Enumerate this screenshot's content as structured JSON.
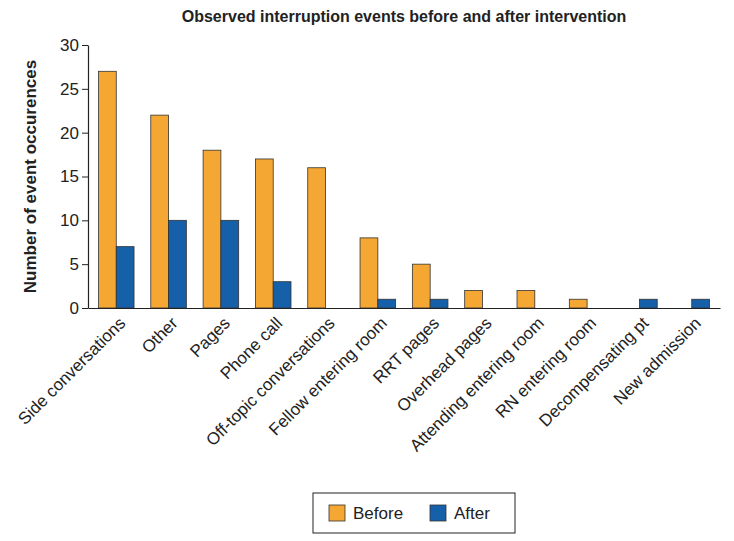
{
  "chart_data": {
    "type": "bar",
    "title": "Observed interruption events before and after intervention",
    "y_label": "Number of event occurences",
    "categories": [
      "Side conversations",
      "Other",
      "Pages",
      "Phone call",
      "Off-topic conversations",
      "Fellow entering room",
      "RRT pages",
      "Overhead pages",
      "Attending entering room",
      "RN entering room",
      "Decompensating pt",
      "New admission"
    ],
    "series": [
      {
        "name": "Before",
        "color": "#f5a733",
        "values": [
          27,
          22,
          18,
          17,
          16,
          8,
          5,
          2,
          2,
          1,
          0,
          0
        ]
      },
      {
        "name": "After",
        "color": "#1560a8",
        "values": [
          7,
          10,
          10,
          3,
          0,
          1,
          1,
          0,
          0,
          0,
          1,
          1
        ]
      }
    ],
    "ylim": [
      0,
      30
    ],
    "yticks": [
      0,
      5,
      10,
      15,
      20,
      25,
      30
    ],
    "grid": false,
    "legend": "bottom"
  }
}
